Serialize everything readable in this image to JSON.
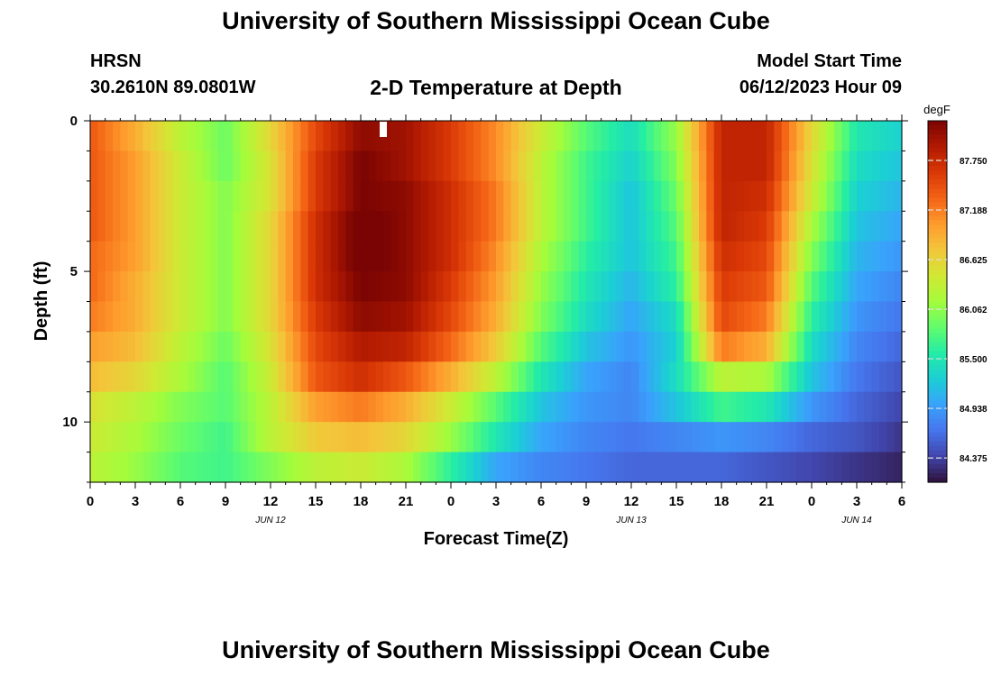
{
  "header": {
    "title": "University of Southern Mississippi Ocean Cube",
    "station": "HRSN",
    "coords": "30.2610N  89.0801W",
    "subtitle": "2-D Temperature at Depth",
    "start_label": "Model Start Time",
    "start_value": "06/12/2023 Hour 09"
  },
  "footer": {
    "title": "University of Southern Mississippi Ocean Cube"
  },
  "chart_data": {
    "type": "heatmap",
    "title": "2-D Temperature at Depth",
    "xlabel": "Forecast Time(Z)",
    "ylabel": "Depth (ft)",
    "x_start_hour": 0,
    "x_end_hour": 54,
    "x_ticks": [
      {
        "hour": 0,
        "label": "0"
      },
      {
        "hour": 3,
        "label": "3"
      },
      {
        "hour": 6,
        "label": "6"
      },
      {
        "hour": 9,
        "label": "9"
      },
      {
        "hour": 12,
        "label": "12"
      },
      {
        "hour": 15,
        "label": "15"
      },
      {
        "hour": 18,
        "label": "18"
      },
      {
        "hour": 21,
        "label": "21"
      },
      {
        "hour": 24,
        "label": "0"
      },
      {
        "hour": 27,
        "label": "3"
      },
      {
        "hour": 30,
        "label": "6"
      },
      {
        "hour": 33,
        "label": "9"
      },
      {
        "hour": 36,
        "label": "12"
      },
      {
        "hour": 39,
        "label": "15"
      },
      {
        "hour": 42,
        "label": "18"
      },
      {
        "hour": 45,
        "label": "21"
      },
      {
        "hour": 48,
        "label": "0"
      },
      {
        "hour": 51,
        "label": "3"
      },
      {
        "hour": 54,
        "label": "6"
      }
    ],
    "date_labels": [
      {
        "hour": 12,
        "label": "JUN 12"
      },
      {
        "hour": 36,
        "label": "JUN 13"
      },
      {
        "hour": 51,
        "label": "JUN 14"
      }
    ],
    "ylim": [
      0,
      12
    ],
    "y_ticks": [
      0,
      5,
      10
    ],
    "depths_ft": [
      0.5,
      1.5,
      2.5,
      3.5,
      4.5,
      5.5,
      6.5,
      7.5,
      8.5,
      9.5,
      10.5,
      11.5
    ],
    "hours": [
      0,
      3,
      6,
      9,
      12,
      15,
      18,
      21,
      24,
      27,
      30,
      33,
      36,
      39,
      42,
      45,
      48,
      51,
      54
    ],
    "temperature_degF": [
      [
        87.4,
        86.9,
        86.3,
        85.9,
        86.6,
        87.5,
        88.1,
        88.0,
        87.6,
        87.1,
        86.4,
        85.8,
        85.4,
        86.1,
        87.8,
        87.8,
        86.6,
        85.5,
        85.3
      ],
      [
        87.4,
        87.0,
        86.4,
        85.9,
        86.5,
        87.6,
        88.2,
        88.0,
        87.6,
        87.1,
        86.3,
        85.7,
        85.3,
        86.0,
        87.8,
        87.8,
        86.5,
        85.4,
        85.2
      ],
      [
        87.4,
        87.0,
        86.4,
        86.0,
        86.5,
        87.6,
        88.2,
        88.1,
        87.7,
        87.2,
        86.3,
        85.7,
        85.2,
        85.9,
        87.8,
        87.7,
        86.4,
        85.3,
        85.1
      ],
      [
        87.4,
        87.0,
        86.4,
        86.0,
        86.6,
        87.7,
        88.3,
        88.1,
        87.7,
        87.2,
        86.3,
        85.7,
        85.2,
        85.8,
        87.8,
        87.6,
        86.2,
        85.2,
        85.0
      ],
      [
        87.3,
        87.0,
        86.4,
        86.0,
        86.6,
        87.7,
        88.3,
        88.1,
        87.7,
        87.1,
        86.2,
        85.6,
        85.2,
        85.7,
        87.7,
        87.5,
        86.0,
        85.1,
        84.9
      ],
      [
        87.3,
        86.9,
        86.4,
        86.0,
        86.6,
        87.7,
        88.2,
        88.1,
        87.6,
        87.0,
        86.1,
        85.5,
        85.1,
        85.6,
        87.6,
        87.4,
        85.8,
        85.0,
        84.8
      ],
      [
        87.2,
        86.9,
        86.4,
        86.0,
        86.6,
        87.6,
        88.1,
        88.0,
        87.5,
        86.9,
        86.0,
        85.4,
        85.0,
        85.4,
        87.5,
        87.2,
        85.6,
        84.9,
        84.7
      ],
      [
        87.0,
        86.8,
        86.3,
        85.9,
        86.5,
        87.5,
        87.9,
        87.8,
        87.3,
        86.7,
        85.8,
        85.2,
        84.9,
        85.3,
        87.2,
        86.9,
        85.4,
        84.8,
        84.6
      ],
      [
        86.8,
        86.6,
        86.2,
        85.8,
        86.4,
        87.4,
        87.7,
        87.4,
        86.9,
        86.3,
        85.5,
        85.0,
        84.8,
        85.4,
        86.3,
        86.2,
        85.2,
        84.7,
        84.5
      ],
      [
        86.5,
        86.3,
        86.0,
        85.8,
        86.3,
        87.0,
        87.2,
        86.9,
        86.4,
        85.8,
        85.2,
        84.9,
        84.8,
        85.2,
        85.7,
        85.5,
        84.9,
        84.6,
        84.4
      ],
      [
        86.4,
        86.2,
        85.9,
        85.7,
        86.3,
        86.7,
        86.8,
        86.6,
        86.1,
        85.5,
        85.0,
        84.8,
        84.7,
        84.8,
        84.9,
        84.8,
        84.6,
        84.5,
        84.3
      ],
      [
        86.3,
        86.1,
        85.8,
        85.7,
        86.0,
        86.3,
        86.4,
        86.2,
        85.6,
        85.0,
        84.8,
        84.7,
        84.6,
        84.6,
        84.6,
        84.5,
        84.4,
        84.3,
        84.2
      ]
    ],
    "colorbar": {
      "unit": "degF",
      "range": [
        84.1,
        88.2
      ],
      "tick_values": [
        84.375,
        84.938,
        85.5,
        86.062,
        86.625,
        87.188,
        87.75
      ],
      "tick_labels": [
        "84.375",
        "84.938",
        "85.500",
        "86.062",
        "86.625",
        "87.188",
        "87.750"
      ],
      "colors": [
        "#30123b",
        "#4145ab",
        "#4675ed",
        "#39a2fc",
        "#1bcfd4",
        "#24eca6",
        "#61fc6c",
        "#a4fc3b",
        "#d1e834",
        "#f3c63a",
        "#fe9b2d",
        "#f36315",
        "#d93806",
        "#b11901",
        "#7a0403"
      ]
    },
    "marker": {
      "hour": 19.5,
      "depth_ft": 0.3
    }
  }
}
